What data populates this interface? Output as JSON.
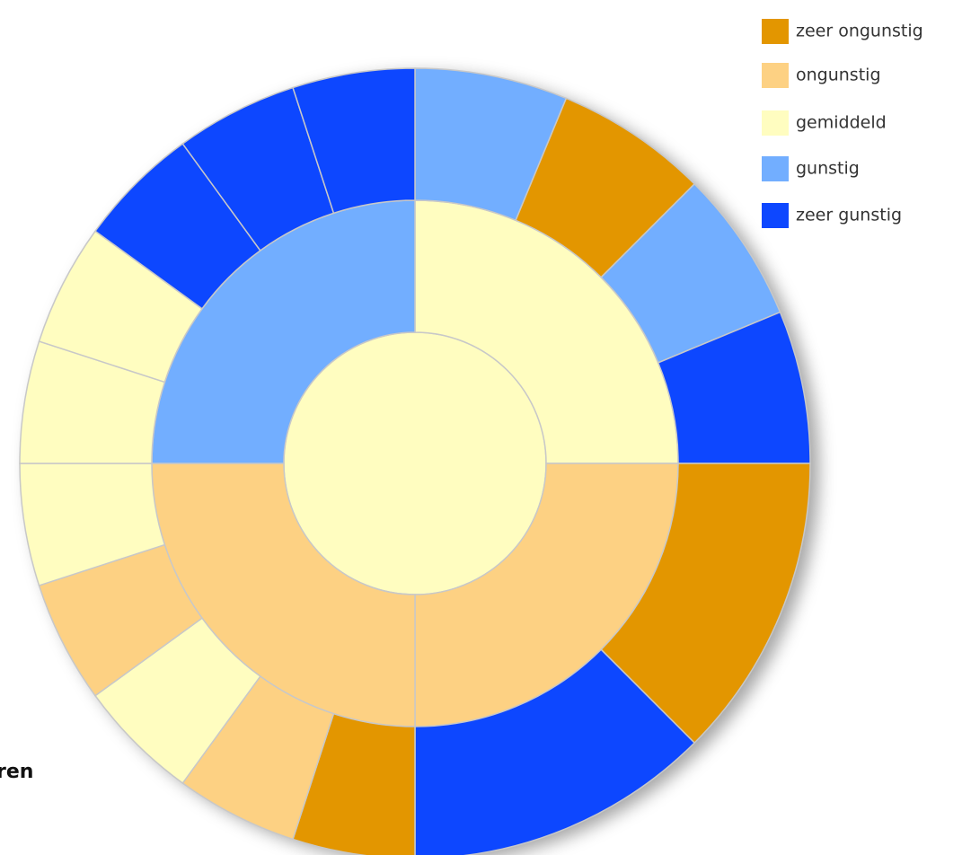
{
  "chart_data": {
    "type": "sunburst",
    "title_fragment": "ren",
    "legend": [
      {
        "name": "zeer ongunstig",
        "color": "#e39600"
      },
      {
        "name": "ongunstig",
        "color": "#fdd183"
      },
      {
        "name": "gemiddeld",
        "color": "#fffdc0"
      },
      {
        "name": "gunstig",
        "color": "#72aeff"
      },
      {
        "name": "zeer gunstig",
        "color": "#0d47ff"
      }
    ],
    "rings": [
      {
        "categories": [
          "gemiddeld"
        ],
        "values": [
          100
        ]
      },
      {
        "categories": [
          "gemiddeld",
          "ongunstig",
          "ongunstig",
          "gunstig"
        ],
        "values": [
          25,
          25,
          25,
          25
        ]
      },
      {
        "categories": [
          "gunstig",
          "zeer ongunstig",
          "gunstig",
          "zeer gunstig",
          "zeer ongunstig",
          "zeer gunstig",
          "zeer ongunstig",
          "ongunstig",
          "gemiddeld",
          "ongunstig",
          "gemiddeld",
          "gemiddeld",
          "gemiddeld",
          "zeer gunstig",
          "zeer gunstig",
          "zeer gunstig"
        ],
        "values": [
          6.25,
          6.25,
          6.25,
          6.25,
          12.5,
          12.5,
          5,
          5,
          5,
          5,
          5,
          5,
          5,
          5,
          5,
          5
        ]
      }
    ]
  }
}
